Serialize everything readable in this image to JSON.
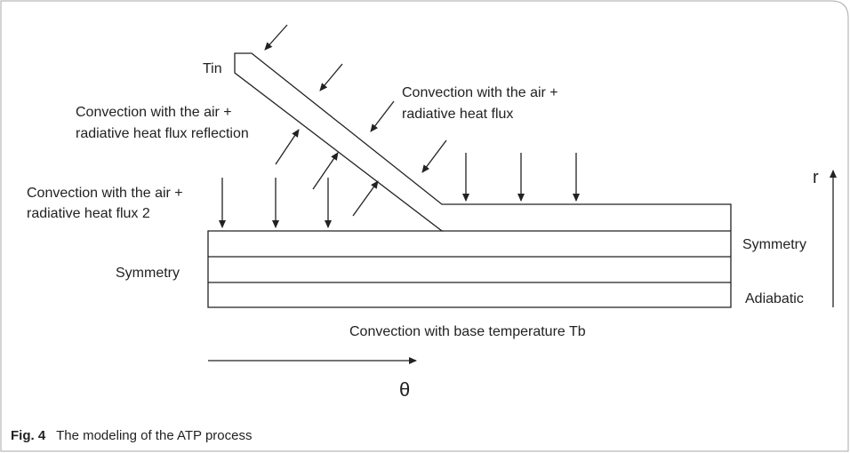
{
  "labels": {
    "tin": "Tin",
    "reflection": [
      "Convection with the air +",
      "radiative heat flux reflection"
    ],
    "flux": [
      "Convection with the air +",
      "radiative heat flux"
    ],
    "flux2": [
      "Convection with the air +",
      "radiative heat flux 2"
    ],
    "symmetry_left": "Symmetry",
    "symmetry_right": "Symmetry",
    "adiabatic": "Adiabatic",
    "base": "Convection with base temperature Tb",
    "r": "r",
    "theta": "θ"
  },
  "caption": {
    "label": "Fig. 4",
    "text": "The modeling of the ATP process"
  }
}
